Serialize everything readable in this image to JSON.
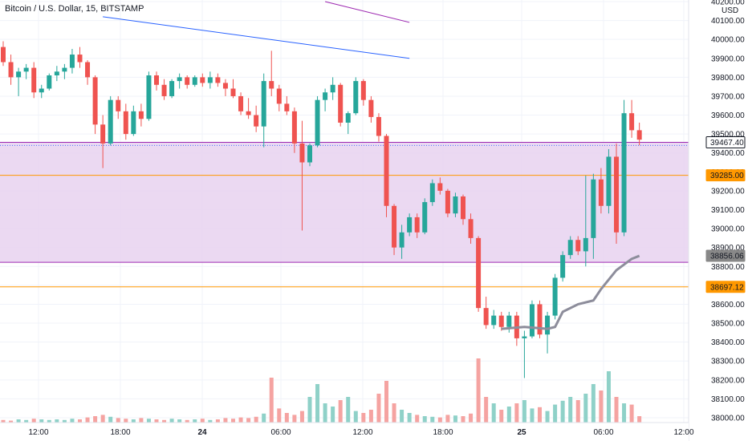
{
  "header": {
    "title": "Bitcoin / U.S. Dollar, 15, BITSTAMP"
  },
  "price_axis": {
    "currency": "USD",
    "ticks": [
      "40200.00",
      "40100.00",
      "40000.00",
      "39900.00",
      "39800.00",
      "39700.00",
      "39600.00",
      "39500.00",
      "39400.00",
      "39300.00",
      "39200.00",
      "39100.00",
      "39000.00",
      "38900.00",
      "38800.00",
      "38700.00",
      "38600.00",
      "38500.00",
      "38400.00",
      "38300.00",
      "38200.00",
      "38100.00",
      "38000.00"
    ]
  },
  "time_axis": {
    "labels": [
      {
        "text": "12:00",
        "bold": false
      },
      {
        "text": "18:00",
        "bold": false
      },
      {
        "text": "24",
        "bold": true
      },
      {
        "text": "06:00",
        "bold": false
      },
      {
        "text": "12:00",
        "bold": false
      },
      {
        "text": "18:00",
        "bold": false
      },
      {
        "text": "25",
        "bold": true
      },
      {
        "text": "06:00",
        "bold": false
      },
      {
        "text": "12:00",
        "bold": false
      }
    ]
  },
  "price_labels": [
    {
      "text": "39467.40",
      "price": 39456,
      "color": "#ffffff",
      "text_color": "#131722",
      "border": "#131722"
    },
    {
      "text": "39285.00",
      "price": 39282,
      "color": "#ff9800",
      "text_color": "#131722",
      "border": "#ff9800"
    },
    {
      "text": "38856.06",
      "price": 38856,
      "color": "#888888",
      "text_color": "#ffffff",
      "border": "#888888"
    },
    {
      "text": "38697.12",
      "price": 38692,
      "color": "#ff9800",
      "text_color": "#131722",
      "border": "#ff9800"
    }
  ],
  "colors": {
    "up": "#26a69a",
    "down": "#ef5350",
    "up_volume": "#8fd1c8",
    "down_volume": "#f5a3a1",
    "zone_fill": "#e8d2f0",
    "zone_line": "#9c27b0",
    "orange_line": "#ff9800",
    "trend_blue": "#2962ff",
    "trend_purple": "#9c27b0",
    "ma_line": "#8d8d9b",
    "grid": "#f0f3fa"
  },
  "chart_data": {
    "type": "candlestick",
    "symbol": "Bitcoin / U.S. Dollar",
    "interval": "15",
    "exchange": "BITSTAMP",
    "y_range": [
      38000,
      40200
    ],
    "shaded_zone": {
      "from": 38822,
      "to": 39456
    },
    "horizontal_lines": [
      38692,
      39282,
      39456,
      38822
    ],
    "trend_lines": [
      {
        "color": "blue",
        "from": {
          "bar": 13,
          "price": 40120
        },
        "to": {
          "bar": 53,
          "price": 39900
        }
      },
      {
        "color": "purple",
        "from": {
          "bar": 42,
          "price": 40200
        },
        "to": {
          "bar": 53,
          "price": 40090
        }
      }
    ],
    "moving_average": [
      {
        "bar": 65,
        "price": 38470
      },
      {
        "bar": 68,
        "price": 38480
      },
      {
        "bar": 71,
        "price": 38470
      },
      {
        "bar": 72,
        "price": 38480
      },
      {
        "bar": 73,
        "price": 38560
      },
      {
        "bar": 75,
        "price": 38600
      },
      {
        "bar": 77,
        "price": 38620
      },
      {
        "bar": 78,
        "price": 38680
      },
      {
        "bar": 80,
        "price": 38780
      },
      {
        "bar": 81,
        "price": 38810
      },
      {
        "bar": 82,
        "price": 38840
      },
      {
        "bar": 83,
        "price": 38856
      }
    ],
    "candles": [
      [
        39960,
        39990,
        39860,
        39880
      ],
      [
        39880,
        39920,
        39760,
        39800
      ],
      [
        39800,
        39850,
        39700,
        39830
      ],
      [
        39830,
        39870,
        39790,
        39850
      ],
      [
        39850,
        39880,
        39690,
        39720
      ],
      [
        39720,
        39760,
        39690,
        39740
      ],
      [
        39740,
        39820,
        39730,
        39810
      ],
      [
        39810,
        39860,
        39780,
        39830
      ],
      [
        39830,
        39870,
        39790,
        39850
      ],
      [
        39850,
        39950,
        39820,
        39920
      ],
      [
        39920,
        39960,
        39850,
        39880
      ],
      [
        39880,
        39890,
        39760,
        39800
      ],
      [
        39800,
        39810,
        39500,
        39550
      ],
      [
        39550,
        39600,
        39320,
        39450
      ],
      [
        39450,
        39700,
        39440,
        39680
      ],
      [
        39680,
        39700,
        39580,
        39620
      ],
      [
        39620,
        39660,
        39470,
        39500
      ],
      [
        39500,
        39650,
        39490,
        39620
      ],
      [
        39620,
        39660,
        39540,
        39580
      ],
      [
        39580,
        39830,
        39570,
        39810
      ],
      [
        39810,
        39830,
        39730,
        39760
      ],
      [
        39760,
        39790,
        39680,
        39700
      ],
      [
        39700,
        39790,
        39690,
        39780
      ],
      [
        39780,
        39820,
        39740,
        39800
      ],
      [
        39800,
        39810,
        39740,
        39760
      ],
      [
        39760,
        39810,
        39750,
        39800
      ],
      [
        39800,
        39820,
        39750,
        39770
      ],
      [
        39770,
        39830,
        39740,
        39800
      ],
      [
        39800,
        39820,
        39750,
        39770
      ],
      [
        39770,
        39790,
        39700,
        39740
      ],
      [
        39740,
        39790,
        39690,
        39700
      ],
      [
        39700,
        39720,
        39600,
        39620
      ],
      [
        39620,
        39690,
        39580,
        39600
      ],
      [
        39600,
        39650,
        39510,
        39540
      ],
      [
        39540,
        39820,
        39430,
        39780
      ],
      [
        39780,
        39940,
        39700,
        39740
      ],
      [
        39740,
        39760,
        39620,
        39660
      ],
      [
        39660,
        39700,
        39600,
        39620
      ],
      [
        39620,
        39640,
        39400,
        39450
      ],
      [
        39450,
        39570,
        38990,
        39350
      ],
      [
        39350,
        39450,
        39330,
        39440
      ],
      [
        39440,
        39700,
        39430,
        39680
      ],
      [
        39680,
        39740,
        39620,
        39720
      ],
      [
        39720,
        39800,
        39680,
        39760
      ],
      [
        39760,
        39770,
        39540,
        39560
      ],
      [
        39560,
        39620,
        39500,
        39610
      ],
      [
        39610,
        39800,
        39600,
        39780
      ],
      [
        39780,
        39790,
        39650,
        39680
      ],
      [
        39680,
        39700,
        39560,
        39590
      ],
      [
        39590,
        39610,
        39460,
        39490
      ],
      [
        39490,
        39500,
        39060,
        39120
      ],
      [
        39120,
        39130,
        38860,
        38900
      ],
      [
        38900,
        39020,
        38840,
        38980
      ],
      [
        38980,
        39080,
        38960,
        39060
      ],
      [
        39060,
        39080,
        38950,
        38980
      ],
      [
        38980,
        39160,
        38970,
        39140
      ],
      [
        39140,
        39260,
        39120,
        39240
      ],
      [
        39240,
        39270,
        39180,
        39200
      ],
      [
        39200,
        39210,
        39060,
        39080
      ],
      [
        39080,
        39190,
        39060,
        39170
      ],
      [
        39170,
        39180,
        39020,
        39050
      ],
      [
        39050,
        39080,
        38920,
        38950
      ],
      [
        38950,
        38960,
        38560,
        38580
      ],
      [
        38580,
        38640,
        38470,
        38490
      ],
      [
        38490,
        38570,
        38470,
        38540
      ],
      [
        38540,
        38560,
        38460,
        38480
      ],
      [
        38480,
        38560,
        38450,
        38540
      ],
      [
        38540,
        38560,
        38380,
        38420
      ],
      [
        38420,
        38460,
        38210,
        38430
      ],
      [
        38430,
        38620,
        38420,
        38600
      ],
      [
        38600,
        38620,
        38420,
        38440
      ],
      [
        38440,
        38560,
        38340,
        38540
      ],
      [
        38540,
        38760,
        38520,
        38740
      ],
      [
        38740,
        38880,
        38720,
        38860
      ],
      [
        38860,
        38960,
        38840,
        38940
      ],
      [
        38940,
        38960,
        38860,
        38880
      ],
      [
        38880,
        39280,
        38800,
        38950
      ],
      [
        38950,
        39290,
        38840,
        39260
      ],
      [
        39260,
        39320,
        39080,
        39120
      ],
      [
        39120,
        39420,
        39080,
        39380
      ],
      [
        39380,
        39450,
        38920,
        38980
      ],
      [
        38980,
        39680,
        38960,
        39610
      ],
      [
        39610,
        39680,
        39480,
        39520
      ],
      [
        39520,
        39560,
        39440,
        39470
      ]
    ],
    "volumes": [
      4,
      3,
      5,
      4,
      6,
      5,
      4,
      5,
      4,
      6,
      5,
      8,
      10,
      12,
      9,
      7,
      6,
      5,
      7,
      6,
      5,
      4,
      6,
      5,
      4,
      5,
      6,
      4,
      5,
      7,
      6,
      8,
      7,
      9,
      14,
      70,
      22,
      15,
      12,
      18,
      40,
      60,
      30,
      25,
      35,
      40,
      18,
      15,
      20,
      45,
      65,
      30,
      20,
      15,
      12,
      10,
      9,
      8,
      12,
      11,
      10,
      14,
      100,
      40,
      30,
      20,
      25,
      30,
      35,
      22,
      24,
      18,
      28,
      34,
      40,
      35,
      45,
      60,
      50,
      80,
      40,
      30,
      28,
      10
    ]
  }
}
